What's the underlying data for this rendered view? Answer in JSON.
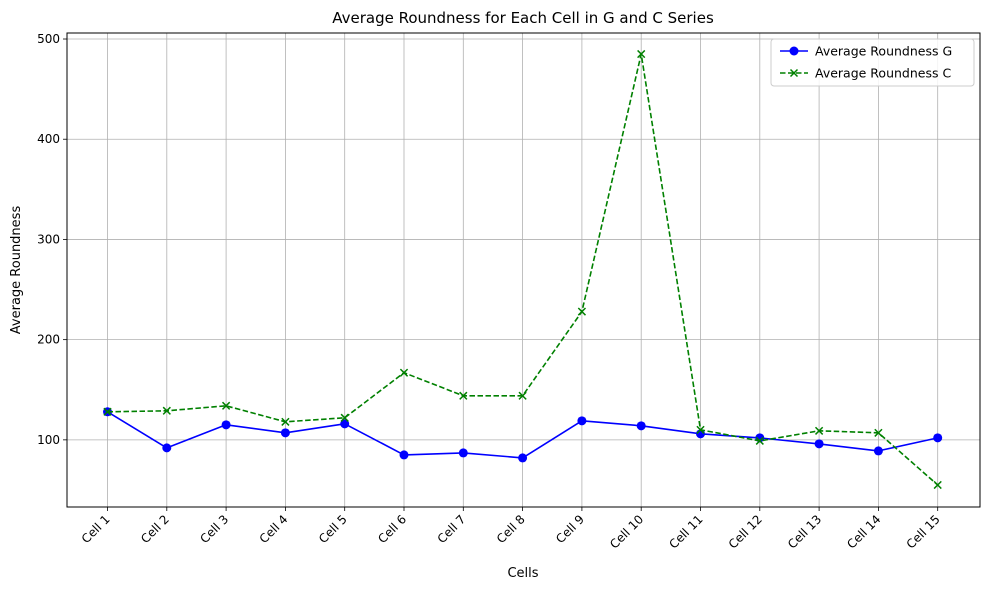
{
  "chart_data": {
    "type": "line",
    "title": "Average Roundness for Each Cell in G and C Series",
    "xlabel": "Cells",
    "ylabel": "Average Roundness",
    "categories": [
      "Cell 1",
      "Cell 2",
      "Cell 3",
      "Cell 4",
      "Cell 5",
      "Cell 6",
      "Cell 7",
      "Cell 8",
      "Cell 9",
      "Cell 10",
      "Cell 11",
      "Cell 12",
      "Cell 13",
      "Cell 14",
      "Cell 15"
    ],
    "ylim": [
      33,
      506
    ],
    "yticks": [
      100,
      200,
      300,
      400,
      500
    ],
    "grid": true,
    "legend_position": "top-right",
    "series": [
      {
        "name": "Average Roundness G",
        "color": "#0000ff",
        "line_style": "solid",
        "marker": "circle",
        "values": [
          128,
          92,
          115,
          107,
          116,
          85,
          87,
          82,
          119,
          114,
          106,
          102,
          96,
          89,
          102
        ]
      },
      {
        "name": "Average Roundness C",
        "color": "#008000",
        "line_style": "dashed",
        "marker": "x",
        "values": [
          128,
          129,
          134,
          118,
          122,
          167,
          144,
          144,
          228,
          485,
          110,
          99,
          109,
          107,
          55
        ]
      }
    ]
  }
}
